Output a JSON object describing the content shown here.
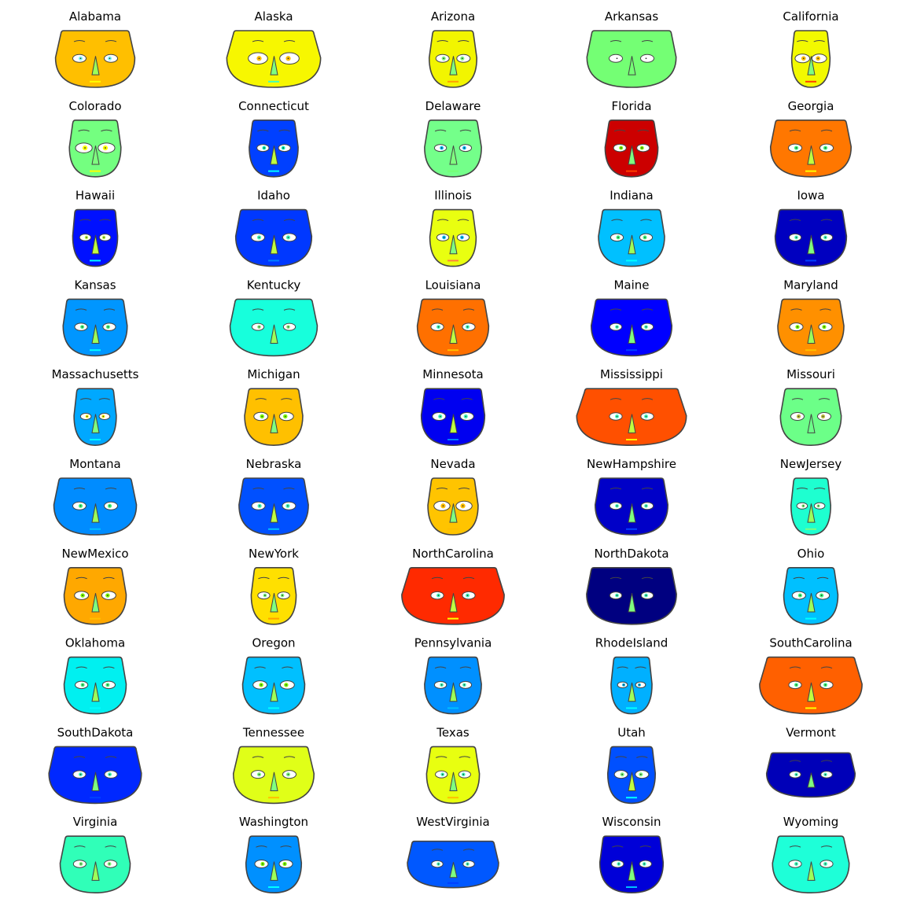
{
  "chart_data": {
    "type": "chernoff_faces",
    "grid": "off",
    "faces": [
      {
        "name": "Alabama",
        "color": "#ffbf00",
        "eye_color": "#7fffff",
        "nose_color": "#9cff5a",
        "mouth_color": "#ffff00",
        "width": 1.2,
        "height": 1.0,
        "flat": 0.7,
        "eye_size": 1.0
      },
      {
        "name": "Alaska",
        "color": "#f7f700",
        "eye_color": "#ffbf00",
        "nose_color": "#7fff7f",
        "mouth_color": "#40ffbf",
        "width": 1.42,
        "height": 1.0,
        "flat": 0.75,
        "eye_size": 1.45
      },
      {
        "name": "Arizona",
        "color": "#f2f500",
        "eye_color": "#7fff7f",
        "nose_color": "#7fff7f",
        "mouth_color": "#ff9f00",
        "width": 0.72,
        "height": 1.0,
        "flat": 0.8,
        "eye_size": 1.0
      },
      {
        "name": "Arkansas",
        "color": "#74ff74",
        "eye_color": "#ffffff",
        "nose_color": "#74ff74",
        "mouth_color": "#74ff74",
        "width": 1.35,
        "height": 1.0,
        "flat": 0.45,
        "eye_size": 1.0
      },
      {
        "name": "California",
        "color": "#f2f900",
        "eye_color": "#ffbf00",
        "nose_color": "#7fff7f",
        "mouth_color": "#ff4000",
        "width": 0.58,
        "height": 1.0,
        "flat": 0.75,
        "eye_size": 1.1
      },
      {
        "name": "Colorado",
        "color": "#74ff80",
        "eye_color": "#ffff00",
        "nose_color": "#7fff7f",
        "mouth_color": "#ffff00",
        "width": 0.78,
        "height": 1.0,
        "flat": 0.7,
        "eye_size": 1.25
      },
      {
        "name": "Connecticut",
        "color": "#0040ff",
        "eye_color": "#00ffbf",
        "nose_color": "#bfff40",
        "mouth_color": "#00ffff",
        "width": 0.74,
        "height": 1.0,
        "flat": 0.7,
        "eye_size": 0.9
      },
      {
        "name": "Delaware",
        "color": "#74ff8a",
        "eye_color": "#00bfff",
        "nose_color": "#7fff7f",
        "mouth_color": "#74ff74",
        "width": 0.86,
        "height": 1.0,
        "flat": 0.75,
        "eye_size": 0.9
      },
      {
        "name": "Florida",
        "color": "#cc0000",
        "eye_color": "#7fff00",
        "nose_color": "#7fff7f",
        "mouth_color": "#ff4000",
        "width": 0.8,
        "height": 1.0,
        "flat": 0.8,
        "eye_size": 0.95
      },
      {
        "name": "Georgia",
        "color": "#ff7700",
        "eye_color": "#40ff80",
        "nose_color": "#bfff40",
        "mouth_color": "#ffff00",
        "width": 1.22,
        "height": 1.0,
        "flat": 0.55,
        "eye_size": 1.0
      },
      {
        "name": "Hawaii",
        "color": "#0010ff",
        "eye_color": "#bfff40",
        "nose_color": "#bfff40",
        "mouth_color": "#00ffff",
        "width": 0.68,
        "height": 1.0,
        "flat": 0.4,
        "eye_size": 0.85
      },
      {
        "name": "Idaho",
        "color": "#0038ff",
        "eye_color": "#40ffbf",
        "nose_color": "#bfff40",
        "mouth_color": "#0080ff",
        "width": 1.15,
        "height": 1.0,
        "flat": 0.55,
        "eye_size": 1.0
      },
      {
        "name": "Illinois",
        "color": "#e9ff10",
        "eye_color": "#00bfff",
        "nose_color": "#7fff7f",
        "mouth_color": "#ff7f40",
        "width": 0.7,
        "height": 1.0,
        "flat": 0.8,
        "eye_size": 0.9
      },
      {
        "name": "Indiana",
        "color": "#00c0ff",
        "eye_color": "#40ff80",
        "nose_color": "#9cff5a",
        "mouth_color": "#00ffff",
        "width": 1.0,
        "height": 1.0,
        "flat": 0.55,
        "eye_size": 0.95
      },
      {
        "name": "Iowa",
        "color": "#0000c0",
        "eye_color": "#40ffbf",
        "nose_color": "#7fff7f",
        "mouth_color": "#0040ff",
        "width": 1.08,
        "height": 1.0,
        "flat": 0.45,
        "eye_size": 0.9
      },
      {
        "name": "Kansas",
        "color": "#0096ff",
        "eye_color": "#40ff80",
        "nose_color": "#9cff5a",
        "mouth_color": "#00ffff",
        "width": 0.97,
        "height": 1.0,
        "flat": 0.5,
        "eye_size": 0.95
      },
      {
        "name": "Kentucky",
        "color": "#17ffdc",
        "eye_color": "#7fff7f",
        "nose_color": "#9cff5a",
        "mouth_color": "#17ffdc",
        "width": 1.32,
        "height": 1.0,
        "flat": 0.5,
        "eye_size": 0.9
      },
      {
        "name": "Louisiana",
        "color": "#ff7000",
        "eye_color": "#40ffbf",
        "nose_color": "#bfff40",
        "mouth_color": "#ffbf00",
        "width": 1.08,
        "height": 1.0,
        "flat": 0.55,
        "eye_size": 0.95
      },
      {
        "name": "Maine",
        "color": "#0000ff",
        "eye_color": "#40ffbf",
        "nose_color": "#7fff7f",
        "mouth_color": "#0040ff",
        "width": 1.22,
        "height": 1.0,
        "flat": 0.45,
        "eye_size": 0.9
      },
      {
        "name": "Maryland",
        "color": "#ff9000",
        "eye_color": "#7fff00",
        "nose_color": "#9cff5a",
        "mouth_color": "#ffbf00",
        "width": 1.0,
        "height": 1.0,
        "flat": 0.55,
        "eye_size": 1.0
      },
      {
        "name": "Massachusetts",
        "color": "#00a8ff",
        "eye_color": "#ffff00",
        "nose_color": "#7fff7f",
        "mouth_color": "#00ffff",
        "width": 0.64,
        "height": 1.0,
        "flat": 0.7,
        "eye_size": 0.8
      },
      {
        "name": "Michigan",
        "color": "#ffc000",
        "eye_color": "#7fff00",
        "nose_color": "#7fff7f",
        "mouth_color": "#ffbf00",
        "width": 0.88,
        "height": 1.0,
        "flat": 0.7,
        "eye_size": 1.05
      },
      {
        "name": "Minnesota",
        "color": "#0000f0",
        "eye_color": "#40ffbf",
        "nose_color": "#bfff40",
        "mouth_color": "#0080ff",
        "width": 0.96,
        "height": 1.0,
        "flat": 0.45,
        "eye_size": 1.0
      },
      {
        "name": "Mississippi",
        "color": "#ff5000",
        "eye_color": "#40ffbf",
        "nose_color": "#bfff40",
        "mouth_color": "#ffff00",
        "width": 1.66,
        "height": 1.0,
        "flat": 0.75,
        "eye_size": 0.95
      },
      {
        "name": "Missouri",
        "color": "#6cff88",
        "eye_color": "#bfbf40",
        "nose_color": "#6cff88",
        "mouth_color": "#6cff88",
        "width": 0.92,
        "height": 1.0,
        "flat": 0.75,
        "eye_size": 1.0
      },
      {
        "name": "Montana",
        "color": "#008cff",
        "eye_color": "#40ff80",
        "nose_color": "#9cff5a",
        "mouth_color": "#00bfff",
        "width": 1.25,
        "height": 1.0,
        "flat": 0.55,
        "eye_size": 1.0
      },
      {
        "name": "Nebraska",
        "color": "#0050ff",
        "eye_color": "#40ffbf",
        "nose_color": "#bfff40",
        "mouth_color": "#00bfff",
        "width": 1.05,
        "height": 1.0,
        "flat": 0.55,
        "eye_size": 1.0
      },
      {
        "name": "Nevada",
        "color": "#ffc400",
        "eye_color": "#ffbf00",
        "nose_color": "#7fff7f",
        "mouth_color": "#ffbf00",
        "width": 0.76,
        "height": 1.0,
        "flat": 0.75,
        "eye_size": 1.2
      },
      {
        "name": "NewHampshire",
        "color": "#0000c8",
        "eye_color": "#40ffbf",
        "nose_color": "#7fff7f",
        "mouth_color": "#0040ff",
        "width": 1.1,
        "height": 1.0,
        "flat": 0.5,
        "eye_size": 0.9
      },
      {
        "name": "NewJersey",
        "color": "#1effd0",
        "eye_color": "#7fff7f",
        "nose_color": "#9cff5a",
        "mouth_color": "#7fff7f",
        "width": 0.6,
        "height": 1.0,
        "flat": 0.75,
        "eye_size": 0.8
      },
      {
        "name": "NewMexico",
        "color": "#ffa800",
        "eye_color": "#7fff00",
        "nose_color": "#7fff7f",
        "mouth_color": "#ffbf00",
        "width": 0.94,
        "height": 1.0,
        "flat": 0.7,
        "eye_size": 1.05
      },
      {
        "name": "NewYork",
        "color": "#ffe000",
        "eye_color": "#7fff7f",
        "nose_color": "#7fff7f",
        "mouth_color": "#ff9f00",
        "width": 0.68,
        "height": 1.0,
        "flat": 0.75,
        "eye_size": 0.9
      },
      {
        "name": "NorthCarolina",
        "color": "#ff2a00",
        "eye_color": "#40ffbf",
        "nose_color": "#bfff40",
        "mouth_color": "#ffff00",
        "width": 1.55,
        "height": 1.0,
        "flat": 0.75,
        "eye_size": 0.95
      },
      {
        "name": "NorthDakota",
        "color": "#000080",
        "eye_color": "#40ffbf",
        "nose_color": "#7fff7f",
        "mouth_color": "#000080",
        "width": 1.36,
        "height": 1.0,
        "flat": 0.4,
        "eye_size": 0.9
      },
      {
        "name": "Ohio",
        "color": "#00c0ff",
        "eye_color": "#40ff80",
        "nose_color": "#9cff5a",
        "mouth_color": "#00ffff",
        "width": 0.82,
        "height": 1.0,
        "flat": 0.7,
        "eye_size": 1.0
      },
      {
        "name": "Oklahoma",
        "color": "#00f0f0",
        "eye_color": "#40ff80",
        "nose_color": "#9cff5a",
        "mouth_color": "#00ffff",
        "width": 0.94,
        "height": 1.0,
        "flat": 0.7,
        "eye_size": 0.95
      },
      {
        "name": "Oregon",
        "color": "#00c0ff",
        "eye_color": "#7fff00",
        "nose_color": "#9cff5a",
        "mouth_color": "#00ffff",
        "width": 0.94,
        "height": 1.0,
        "flat": 0.7,
        "eye_size": 1.05
      },
      {
        "name": "Pennsylvania",
        "color": "#0090ff",
        "eye_color": "#40ffbf",
        "nose_color": "#9cff5a",
        "mouth_color": "#00bfff",
        "width": 0.86,
        "height": 1.0,
        "flat": 0.7,
        "eye_size": 0.9
      },
      {
        "name": "RhodeIsland",
        "color": "#00b0ff",
        "eye_color": "#00bfff",
        "nose_color": "#9cff5a",
        "mouth_color": "#00ffff",
        "width": 0.62,
        "height": 1.0,
        "flat": 0.7,
        "eye_size": 0.75
      },
      {
        "name": "SouthCarolina",
        "color": "#ff6000",
        "eye_color": "#40ff80",
        "nose_color": "#bfff40",
        "mouth_color": "#ffff00",
        "width": 1.55,
        "height": 1.0,
        "flat": 0.7,
        "eye_size": 0.95
      },
      {
        "name": "SouthDakota",
        "color": "#0028ff",
        "eye_color": "#40ffbf",
        "nose_color": "#7fff7f",
        "mouth_color": "#0040ff",
        "width": 1.4,
        "height": 1.0,
        "flat": 0.5,
        "eye_size": 0.95
      },
      {
        "name": "Tennessee",
        "color": "#e0ff18",
        "eye_color": "#7fff7f",
        "nose_color": "#7fff7f",
        "mouth_color": "#ffbf00",
        "width": 1.22,
        "height": 1.0,
        "flat": 0.75,
        "eye_size": 1.0
      },
      {
        "name": "Texas",
        "color": "#e8ff10",
        "eye_color": "#40ffbf",
        "nose_color": "#7fff7f",
        "mouth_color": "#ffbf00",
        "width": 0.8,
        "height": 1.0,
        "flat": 0.8,
        "eye_size": 0.9
      },
      {
        "name": "Utah",
        "color": "#0050ff",
        "eye_color": "#7fff7f",
        "nose_color": "#bfff40",
        "mouth_color": "#00ffff",
        "width": 0.72,
        "height": 1.0,
        "flat": 0.6,
        "eye_size": 1.0
      },
      {
        "name": "Vermont",
        "color": "#0000b8",
        "eye_color": "#40ffbf",
        "nose_color": "#7fff7f",
        "mouth_color": "#0000b8",
        "width": 1.34,
        "height": 0.78,
        "flat": 0.35,
        "eye_size": 0.85
      },
      {
        "name": "Virginia",
        "color": "#30ffb8",
        "eye_color": "#7fff7f",
        "nose_color": "#9cff5a",
        "mouth_color": "#30ffb8",
        "width": 1.06,
        "height": 1.0,
        "flat": 0.75,
        "eye_size": 0.95
      },
      {
        "name": "Washington",
        "color": "#0090ff",
        "eye_color": "#7fff00",
        "nose_color": "#9cff5a",
        "mouth_color": "#00ffff",
        "width": 0.84,
        "height": 1.0,
        "flat": 0.6,
        "eye_size": 1.0
      },
      {
        "name": "WestVirginia",
        "color": "#0058ff",
        "eye_color": "#40ffbf",
        "nose_color": "#7fff7f",
        "mouth_color": "#0040ff",
        "width": 1.38,
        "height": 0.82,
        "flat": 0.35,
        "eye_size": 0.85
      },
      {
        "name": "Wisconsin",
        "color": "#0000d8",
        "eye_color": "#40ffbf",
        "nose_color": "#7fff7f",
        "mouth_color": "#00bfff",
        "width": 0.96,
        "height": 1.0,
        "flat": 0.4,
        "eye_size": 0.9
      },
      {
        "name": "Wyoming",
        "color": "#1effd8",
        "eye_color": "#40ffbf",
        "nose_color": "#9cff5a",
        "mouth_color": "#1effd8",
        "width": 1.16,
        "height": 1.0,
        "flat": 0.7,
        "eye_size": 0.95
      }
    ]
  }
}
